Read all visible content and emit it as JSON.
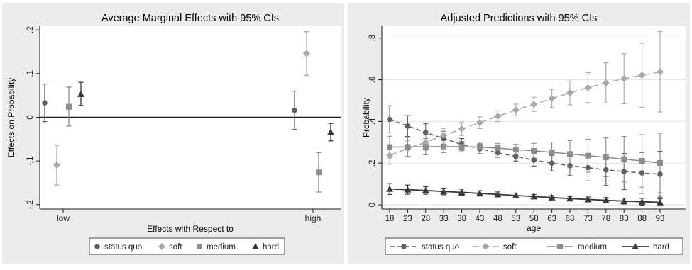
{
  "colors": {
    "panel_bg": "#ececec",
    "plot_bg": "#ffffff",
    "status_quo": "#5f5f5f",
    "soft": "#a8a8a8",
    "medium": "#8c8c8c",
    "hard": "#383838",
    "text": "#1a1a1a"
  },
  "chart_data": [
    {
      "type": "scatter",
      "title": "Average Marginal Effects with 95% CIs",
      "xlabel": "Effects with Respect to",
      "ylabel": "Effects on Probability",
      "categories": [
        "low",
        "high"
      ],
      "ylim": [
        -0.21,
        0.21
      ],
      "yticks": [
        -0.2,
        -0.1,
        0,
        0.1,
        0.2
      ],
      "ytick_labels": [
        "-.2",
        "-.1",
        "0",
        ".1",
        ".2"
      ],
      "grid": false,
      "zero_line": true,
      "legend_position": "bottom",
      "series": [
        {
          "name": "status quo",
          "marker": "circle",
          "values": [
            0.033,
            0.016
          ],
          "ci_low": [
            -0.01,
            -0.028
          ],
          "ci_high": [
            0.076,
            0.06
          ]
        },
        {
          "name": "soft",
          "marker": "diamond",
          "values": [
            -0.109,
            0.146
          ],
          "ci_low": [
            -0.155,
            0.096
          ],
          "ci_high": [
            -0.064,
            0.196
          ]
        },
        {
          "name": "medium",
          "marker": "square",
          "values": [
            0.024,
            -0.126
          ],
          "ci_low": [
            -0.02,
            -0.171
          ],
          "ci_high": [
            0.069,
            -0.081
          ]
        },
        {
          "name": "hard",
          "marker": "triangle",
          "values": [
            0.053,
            -0.034
          ],
          "ci_low": [
            0.027,
            -0.054
          ],
          "ci_high": [
            0.08,
            -0.014
          ]
        }
      ]
    },
    {
      "type": "line",
      "title": "Adjusted Predictions with 95% CIs",
      "xlabel": "age",
      "ylabel": "Probability",
      "x": [
        18,
        23,
        28,
        33,
        38,
        43,
        48,
        53,
        58,
        63,
        68,
        73,
        78,
        83,
        88,
        93
      ],
      "ylim": [
        -0.02,
        0.86
      ],
      "yticks": [
        0,
        0.2,
        0.4,
        0.6,
        0.8
      ],
      "ytick_labels": [
        "0",
        ".2",
        ".4",
        ".6",
        ".8"
      ],
      "grid": true,
      "legend_position": "bottom",
      "series": [
        {
          "name": "status quo",
          "marker": "circle",
          "line": "dash",
          "values": [
            0.41,
            0.378,
            0.347,
            0.318,
            0.29,
            0.269,
            0.25,
            0.232,
            0.215,
            0.2,
            0.188,
            0.178,
            0.168,
            0.16,
            0.153,
            0.147
          ],
          "ci_low": [
            0.345,
            0.328,
            0.305,
            0.283,
            0.262,
            0.245,
            0.228,
            0.21,
            0.186,
            0.163,
            0.14,
            0.115,
            0.093,
            0.073,
            0.055,
            0.037
          ],
          "ci_high": [
            0.475,
            0.428,
            0.389,
            0.353,
            0.318,
            0.293,
            0.272,
            0.254,
            0.244,
            0.237,
            0.236,
            0.241,
            0.243,
            0.247,
            0.251,
            0.257
          ]
        },
        {
          "name": "soft",
          "marker": "diamond",
          "line": "longdash",
          "values": [
            0.238,
            0.27,
            0.3,
            0.333,
            0.364,
            0.394,
            0.425,
            0.455,
            0.482,
            0.51,
            0.537,
            0.562,
            0.585,
            0.605,
            0.622,
            0.638
          ],
          "ci_low": [
            0.195,
            0.233,
            0.262,
            0.3,
            0.333,
            0.366,
            0.399,
            0.427,
            0.448,
            0.466,
            0.48,
            0.49,
            0.489,
            0.485,
            0.468,
            0.445
          ],
          "ci_high": [
            0.281,
            0.307,
            0.338,
            0.366,
            0.395,
            0.422,
            0.451,
            0.483,
            0.516,
            0.554,
            0.594,
            0.634,
            0.681,
            0.725,
            0.776,
            0.831
          ]
        },
        {
          "name": "medium",
          "marker": "square",
          "line": "solid",
          "values": [
            0.277,
            0.278,
            0.279,
            0.28,
            0.279,
            0.277,
            0.272,
            0.265,
            0.259,
            0.252,
            0.244,
            0.236,
            0.228,
            0.219,
            0.211,
            0.201
          ],
          "ci_low": [
            0.225,
            0.233,
            0.24,
            0.25,
            0.254,
            0.254,
            0.25,
            0.24,
            0.223,
            0.203,
            0.18,
            0.157,
            0.135,
            0.11,
            0.085,
            0.058
          ],
          "ci_high": [
            0.329,
            0.323,
            0.318,
            0.31,
            0.304,
            0.3,
            0.294,
            0.29,
            0.295,
            0.301,
            0.308,
            0.315,
            0.321,
            0.328,
            0.337,
            0.344
          ]
        },
        {
          "name": "hard",
          "marker": "triangle",
          "line": "solid",
          "values": [
            0.076,
            0.073,
            0.069,
            0.064,
            0.06,
            0.055,
            0.05,
            0.045,
            0.04,
            0.035,
            0.03,
            0.026,
            0.022,
            0.018,
            0.015,
            0.012
          ],
          "ci_low": [
            0.05,
            0.051,
            0.051,
            0.048,
            0.045,
            0.042,
            0.038,
            0.034,
            0.03,
            0.025,
            0.02,
            0.014,
            0.009,
            0.004,
            -0.001,
            -0.005
          ],
          "ci_high": [
            0.102,
            0.095,
            0.087,
            0.08,
            0.075,
            0.068,
            0.062,
            0.056,
            0.05,
            0.045,
            0.04,
            0.038,
            0.035,
            0.032,
            0.031,
            0.029
          ]
        }
      ]
    }
  ]
}
